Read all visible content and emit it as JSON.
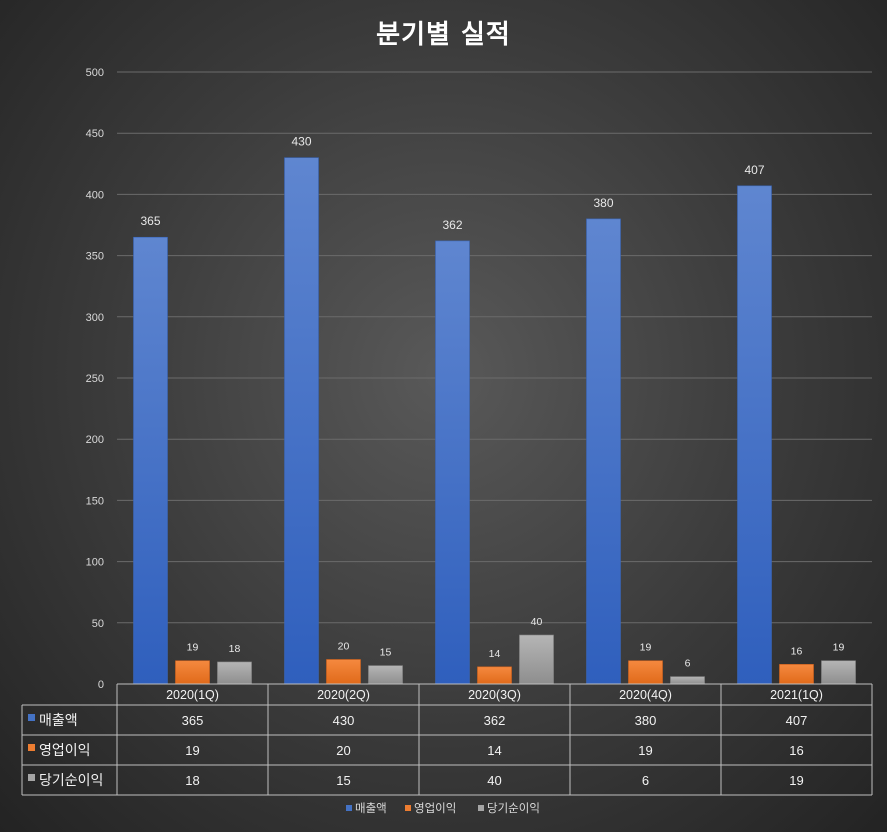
{
  "chart_data": {
    "type": "bar",
    "title": "분기별 실적",
    "categories": [
      "2020(1Q)",
      "2020(2Q)",
      "2020(3Q)",
      "2020(4Q)",
      "2021(1Q)"
    ],
    "series": [
      {
        "name": "매출액",
        "values": [
          365,
          430,
          362,
          380,
          407
        ],
        "color": "#4472c4"
      },
      {
        "name": "영업이익",
        "values": [
          19,
          20,
          14,
          19,
          16
        ],
        "color": "#ed7d31"
      },
      {
        "name": "당기순이익",
        "values": [
          18,
          15,
          40,
          6,
          19
        ],
        "color": "#a5a5a5"
      }
    ],
    "ylim": [
      0,
      500
    ],
    "yticks": [
      0,
      50,
      100,
      150,
      200,
      250,
      300,
      350,
      400,
      450,
      500
    ],
    "grid": true,
    "legend_position": "bottom",
    "data_table": true
  }
}
